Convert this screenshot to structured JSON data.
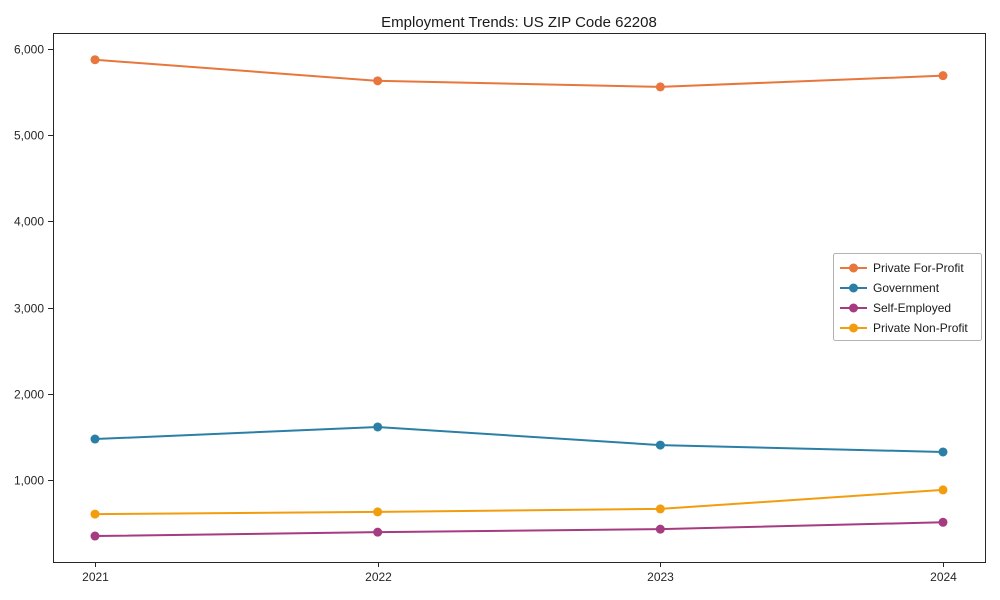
{
  "chart_data": {
    "type": "line",
    "title": "Employment Trends: US ZIP Code 62208",
    "xlabel": "",
    "ylabel": "",
    "x": [
      2021,
      2022,
      2023,
      2024
    ],
    "x_tick_labels": [
      "2021",
      "2022",
      "2023",
      "2024"
    ],
    "y_ticks": [
      1000,
      2000,
      3000,
      4000,
      5000,
      6000
    ],
    "y_tick_labels": [
      "1,000",
      "2,000",
      "3,000",
      "4,000",
      "5,000",
      "6,000"
    ],
    "ylim": [
      49,
      6185
    ],
    "grid": false,
    "marker": "circle",
    "legend_position": "center-right",
    "series": [
      {
        "name": "Private For-Profit",
        "color": "#E8763D",
        "values": [
          5875,
          5630,
          5560,
          5690
        ]
      },
      {
        "name": "Government",
        "color": "#2B7FA6",
        "values": [
          1475,
          1615,
          1405,
          1325
        ]
      },
      {
        "name": "Self-Employed",
        "color": "#A53B80",
        "values": [
          350,
          395,
          430,
          510
        ]
      },
      {
        "name": "Private Non-Profit",
        "color": "#F29D0E",
        "values": [
          605,
          630,
          665,
          885
        ]
      }
    ],
    "style": {
      "background": "#ffffff",
      "frame_color": "#262626",
      "legend_border_color": "#b3b3b3",
      "legend_background": "#ffffff",
      "text_color": "#1a1a1a"
    }
  }
}
